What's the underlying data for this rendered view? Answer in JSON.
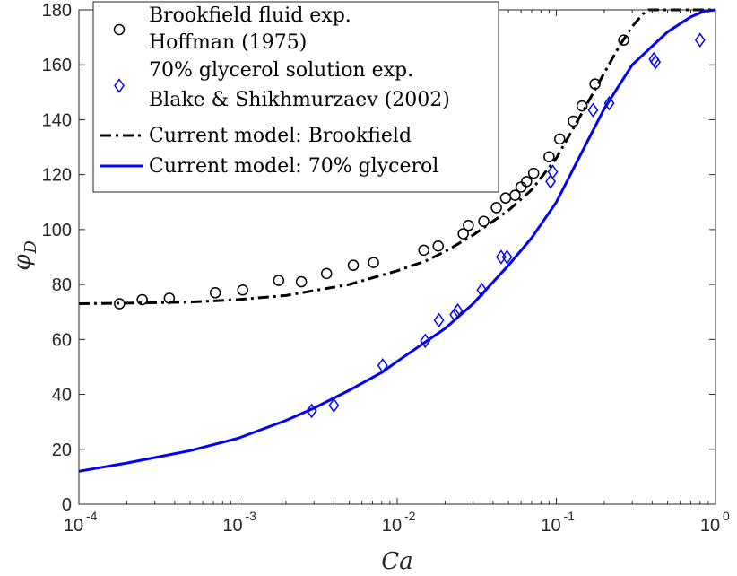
{
  "chart_data": {
    "type": "scatter",
    "title": "",
    "xlabel": "Ca",
    "ylabel": "φ",
    "ylabel_subscript": "D",
    "xscale": "log",
    "xlim": [
      0.0001,
      1
    ],
    "ylim": [
      0,
      180
    ],
    "x_ticks": [
      {
        "value": 0.0001,
        "base": "10",
        "exp": "-4"
      },
      {
        "value": 0.001,
        "base": "10",
        "exp": "-3"
      },
      {
        "value": 0.01,
        "base": "10",
        "exp": "-2"
      },
      {
        "value": 0.1,
        "base": "10",
        "exp": "-1"
      },
      {
        "value": 1,
        "base": "10",
        "exp": "0"
      }
    ],
    "y_ticks": [
      0,
      20,
      40,
      60,
      80,
      100,
      120,
      140,
      160,
      180
    ],
    "y_tick_labels": [
      "0",
      "20",
      "40",
      "60",
      "80",
      "100",
      "120",
      "140",
      "160",
      "180"
    ],
    "grid": false,
    "legend_position": "top-left",
    "series": [
      {
        "name": "Brookfield fluid exp. Hoffman (1975)",
        "legend_lines": [
          "Brookfield fluid exp.",
          "Hoffman (1975)"
        ],
        "kind": "marker-circle",
        "color": "#000000",
        "x": [
          0.00018,
          0.00025,
          0.00037,
          0.00072,
          0.00107,
          0.0018,
          0.0025,
          0.0036,
          0.0053,
          0.0071,
          0.0147,
          0.0181,
          0.026,
          0.028,
          0.035,
          0.042,
          0.048,
          0.055,
          0.06,
          0.065,
          0.072,
          0.09,
          0.105,
          0.128,
          0.145,
          0.175,
          0.265
        ],
        "y": [
          73,
          74.5,
          75,
          77,
          78,
          81.5,
          81,
          84,
          87,
          88,
          92.5,
          94,
          98.5,
          101.5,
          103,
          108,
          111.5,
          112.5,
          115.5,
          117.5,
          120.5,
          126.5,
          133,
          139.5,
          145,
          153,
          169
        ]
      },
      {
        "name": "70% glycerol solution exp. Blake & Shikhmurzaev (2002)",
        "legend_lines": [
          "70% glycerol solution exp.",
          "Blake & Shikhmurzaev (2002)"
        ],
        "kind": "marker-diamond",
        "color": "#0000ff",
        "x": [
          0.0029,
          0.004,
          0.0081,
          0.015,
          0.0183,
          0.023,
          0.024,
          0.034,
          0.045,
          0.049,
          0.092,
          0.095,
          0.17,
          0.215,
          0.41,
          0.42,
          0.8
        ],
        "y": [
          34,
          36,
          50.5,
          59.5,
          67,
          69,
          70.5,
          78,
          90,
          90,
          117.5,
          121,
          143.5,
          146,
          162,
          161,
          169
        ]
      },
      {
        "name": "Current model: Brookfield",
        "legend_lines": [
          "Current model: Brookfield"
        ],
        "kind": "line-dashdot",
        "color": "#000000",
        "x": [
          0.0001,
          0.0002,
          0.0005,
          0.001,
          0.002,
          0.005,
          0.01,
          0.015,
          0.02,
          0.03,
          0.05,
          0.07,
          0.1,
          0.15,
          0.2,
          0.25,
          0.3,
          0.35,
          0.38,
          0.4,
          0.6,
          1
        ],
        "y": [
          73,
          73.2,
          73.6,
          74.5,
          76,
          80,
          85,
          88.5,
          92,
          98,
          107,
          114.5,
          126,
          144,
          157,
          167,
          174,
          178.5,
          180,
          180,
          180,
          180
        ]
      },
      {
        "name": "Current model: 70% glycerol",
        "legend_lines": [
          "Current model: 70% glycerol"
        ],
        "kind": "line-solid",
        "color": "#0000ff",
        "x": [
          0.0001,
          0.0002,
          0.0005,
          0.001,
          0.002,
          0.003,
          0.005,
          0.008,
          0.01,
          0.02,
          0.03,
          0.05,
          0.07,
          0.1,
          0.15,
          0.2,
          0.3,
          0.5,
          0.7,
          0.85,
          1
        ],
        "y": [
          12,
          15,
          19.5,
          24,
          30.5,
          35,
          41.5,
          48,
          52,
          64,
          73,
          87,
          97,
          110,
          130,
          144,
          160,
          172,
          177.5,
          179.5,
          180
        ]
      }
    ]
  }
}
